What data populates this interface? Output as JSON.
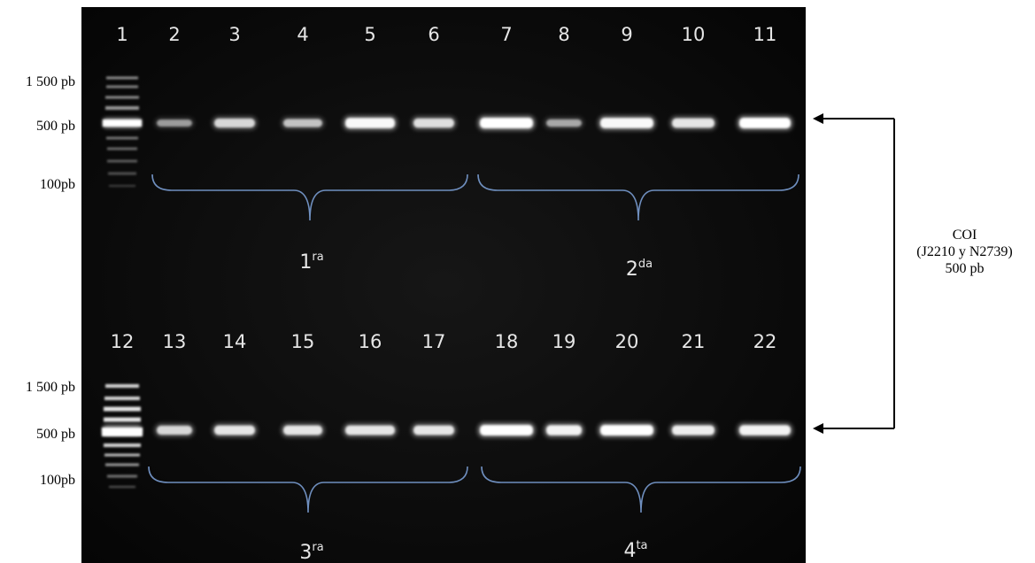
{
  "figure": {
    "top_lanes": [
      "1",
      "2",
      "3",
      "4",
      "5",
      "6",
      "7",
      "8",
      "9",
      "10",
      "11"
    ],
    "bottom_lanes": [
      "12",
      "13",
      "14",
      "15",
      "16",
      "17",
      "18",
      "19",
      "20",
      "21",
      "22"
    ],
    "size_markers": [
      "1 500 pb",
      "500 pb",
      "100pb"
    ],
    "groups": [
      {
        "number": "1",
        "suffix": "ra"
      },
      {
        "number": "2",
        "suffix": "da"
      },
      {
        "number": "3",
        "suffix": "ra"
      },
      {
        "number": "4",
        "suffix": "ta"
      }
    ],
    "annotation": {
      "line1": "COI",
      "line2": "(J2210 y N2739)",
      "line3": "500 pb"
    },
    "colors": {
      "gel": "#0b0b0b",
      "band": "#ffffff",
      "bracket": "#6f8fbf",
      "lane_text": "#e6e6e6",
      "arrow": "#000000"
    },
    "band_intensity_top": [
      1.0,
      0.35,
      0.7,
      0.55,
      0.95,
      0.75,
      1.0,
      0.4,
      0.95,
      0.8,
      1.0
    ],
    "band_intensity_bottom": [
      1.0,
      0.7,
      0.8,
      0.8,
      0.8,
      0.8,
      1.0,
      0.9,
      1.0,
      0.85,
      0.9
    ]
  }
}
